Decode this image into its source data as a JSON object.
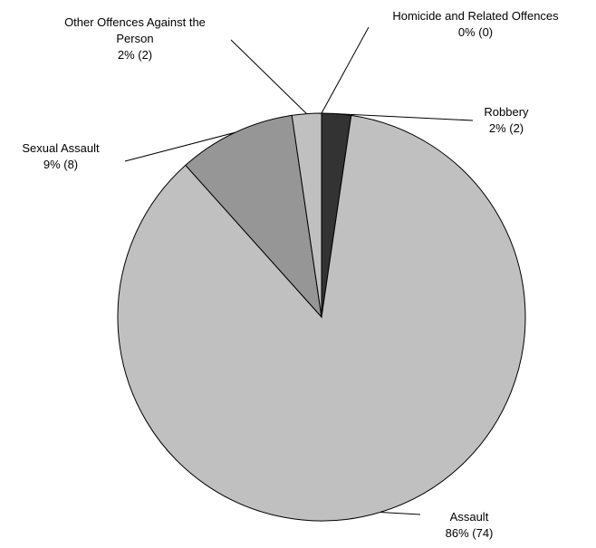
{
  "chart_data": {
    "type": "pie",
    "title": "",
    "slices": [
      {
        "name": "Homicide and Related Offences",
        "label_lines": [
          "Homicide and Related Offences"
        ],
        "value_label": "0% (0)",
        "value": 0,
        "percent": 0,
        "color": "#000000"
      },
      {
        "name": "Robbery",
        "label_lines": [
          "Robbery"
        ],
        "value_label": "2% (2)",
        "value": 2,
        "percent": 2,
        "color": "#333333"
      },
      {
        "name": "Assault",
        "label_lines": [
          "Assault"
        ],
        "value_label": "86% (74)",
        "value": 74,
        "percent": 86,
        "color": "#c0c0c0"
      },
      {
        "name": "Sexual Assault",
        "label_lines": [
          "Sexual Assault"
        ],
        "value_label": "9% (8)",
        "value": 8,
        "percent": 9,
        "color": "#969696"
      },
      {
        "name": "Other Offences Against the Person",
        "label_lines": [
          "Other Offences Against the",
          "Person"
        ],
        "value_label": "2% (2)",
        "value": 2,
        "percent": 2,
        "color": "#c0c0c0"
      }
    ]
  }
}
